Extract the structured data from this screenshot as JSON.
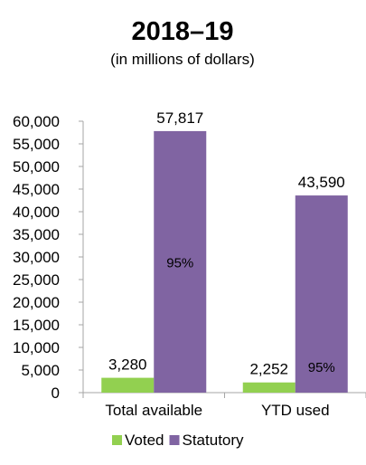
{
  "chart_data": {
    "type": "bar",
    "title": "2018–19",
    "subtitle": "(in millions of dollars)",
    "categories": [
      "Total available",
      "YTD used"
    ],
    "series": [
      {
        "name": "Voted",
        "values": [
          3280,
          2252
        ],
        "value_labels": [
          "3,280",
          "2,252"
        ],
        "color": "#92d050"
      },
      {
        "name": "Statutory",
        "values": [
          57817,
          43590
        ],
        "value_labels": [
          "57,817",
          "43,590"
        ],
        "color": "#8064a2"
      }
    ],
    "inner_labels": [
      {
        "category": "Total available",
        "series": "Statutory",
        "text": "95%"
      },
      {
        "category": "YTD used",
        "series": "Statutory",
        "text": "95%"
      }
    ],
    "ylim": [
      0,
      60000
    ],
    "yticks": [
      0,
      5000,
      10000,
      15000,
      20000,
      25000,
      30000,
      35000,
      40000,
      45000,
      50000,
      55000,
      60000
    ],
    "ytick_labels": [
      "0",
      "5,000",
      "10,000",
      "15,000",
      "20,000",
      "25,000",
      "30,000",
      "35,000",
      "40,000",
      "45,000",
      "50,000",
      "55,000",
      "60,000"
    ],
    "xlabel": "",
    "ylabel": "",
    "grid": false,
    "legend_position": "bottom"
  }
}
